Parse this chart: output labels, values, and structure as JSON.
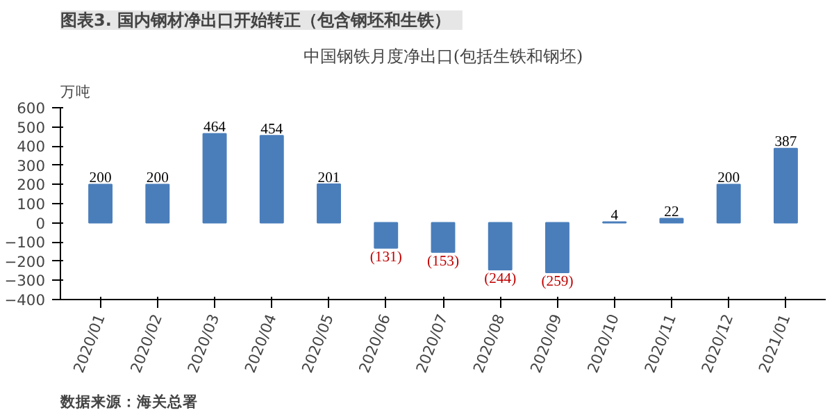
{
  "chart_data": {
    "type": "bar",
    "title": "图表3.   国内钢材净出口开始转正（包含钢坯和生铁）",
    "subtitle": "中国钢铁月度净出口(包括生铁和钢坯)",
    "ylabel": "万吨",
    "categories": [
      "2020/01",
      "2020/02",
      "2020/03",
      "2020/04",
      "2020/05",
      "2020/06",
      "2020/07",
      "2020/08",
      "2020/09",
      "2020/10",
      "2020/11",
      "2020/12",
      "2021/01"
    ],
    "values": [
      200,
      200,
      464,
      454,
      201,
      -131,
      -153,
      -244,
      -259,
      4,
      22,
      200,
      387
    ],
    "value_labels": [
      "200",
      "200",
      "464",
      "454",
      "201",
      "(131)",
      "(153)",
      "(244)",
      "(259)",
      "4",
      "22",
      "200",
      "387"
    ],
    "color": "#4a7ebb",
    "ylim": [
      -400,
      600
    ],
    "yticks": [
      -400,
      -300,
      -200,
      -100,
      0,
      100,
      200,
      300,
      400,
      500,
      600
    ],
    "grid": false,
    "annotations": [
      "数据来源：海关总署"
    ]
  }
}
